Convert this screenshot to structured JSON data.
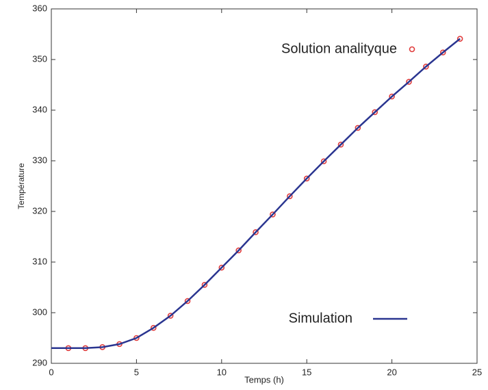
{
  "chart_data": {
    "type": "line",
    "xlabel": "Temps (h)",
    "ylabel": "Température",
    "xlim": [
      0,
      25
    ],
    "xticks": [
      0,
      5,
      10,
      15,
      20,
      25
    ],
    "ylim": [
      290,
      360
    ],
    "yticks": [
      290,
      300,
      310,
      320,
      330,
      340,
      350,
      360
    ],
    "series": [
      {
        "name": "Solution analityque",
        "color": "#e03c3c",
        "marker": "circle",
        "x": [
          1,
          2,
          3,
          4,
          5,
          6,
          7,
          8,
          9,
          10,
          11,
          12,
          13,
          14,
          15,
          16,
          17,
          18,
          19,
          20,
          21,
          22,
          23,
          24
        ],
        "values": [
          293.0,
          293.0,
          293.2,
          293.8,
          295.0,
          297.0,
          299.4,
          302.3,
          305.5,
          308.9,
          312.3,
          315.9,
          319.4,
          323.0,
          326.5,
          329.9,
          333.2,
          336.5,
          339.6,
          342.7,
          345.6,
          348.6,
          351.4,
          354.1
        ]
      },
      {
        "name": "Simulation",
        "color": "#2a3590",
        "marker": "none",
        "x": [
          0,
          1,
          2,
          3,
          4,
          5,
          6,
          7,
          8,
          9,
          10,
          11,
          12,
          13,
          14,
          15,
          16,
          17,
          18,
          19,
          20,
          21,
          22,
          23,
          24
        ],
        "values": [
          293.0,
          293.0,
          293.0,
          293.2,
          293.8,
          295.0,
          297.0,
          299.4,
          302.3,
          305.5,
          308.9,
          312.3,
          315.9,
          319.4,
          323.0,
          326.5,
          329.9,
          333.2,
          336.5,
          339.6,
          342.7,
          345.6,
          348.6,
          351.4,
          354.1
        ]
      }
    ]
  }
}
